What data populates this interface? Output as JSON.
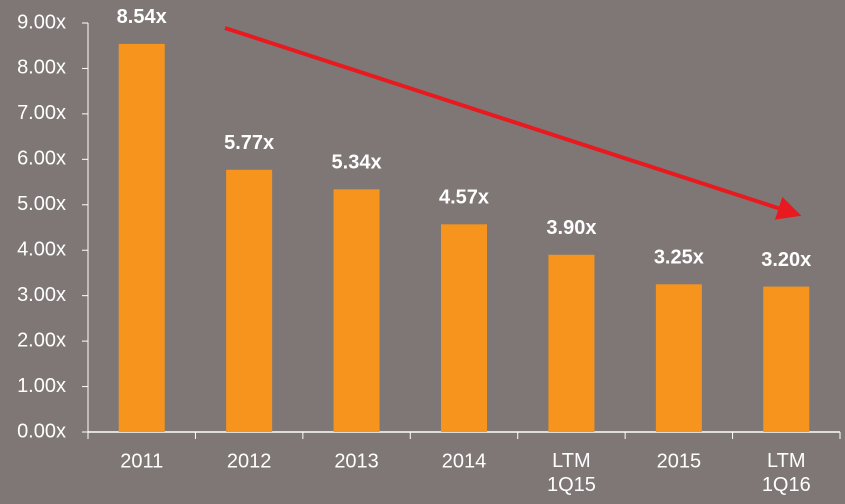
{
  "chart_data": {
    "type": "bar",
    "categories": [
      "2011",
      "2012",
      "2013",
      "2014",
      "LTM 1Q15",
      "2015",
      "LTM 1Q16"
    ],
    "values": [
      8.54,
      5.77,
      5.34,
      4.57,
      3.9,
      3.25,
      3.2
    ],
    "value_labels": [
      "8.54x",
      "5.77x",
      "5.34x",
      "4.57x",
      "3.90x",
      "3.25x",
      "3.20x"
    ],
    "color": "#f7941d",
    "ylim": [
      0,
      9
    ],
    "yticks": [
      {
        "value": 0,
        "label": "0.00x"
      },
      {
        "value": 1,
        "label": "1.00x"
      },
      {
        "value": 2,
        "label": "2.00x"
      },
      {
        "value": 3,
        "label": "3.00x"
      },
      {
        "value": 4,
        "label": "4.00x"
      },
      {
        "value": 5,
        "label": "5.00x"
      },
      {
        "value": 6,
        "label": "6.00x"
      },
      {
        "value": 7,
        "label": "7.00x"
      },
      {
        "value": 8,
        "label": "8.00x"
      },
      {
        "value": 9,
        "label": "9.00x"
      }
    ],
    "grid": false
  }
}
